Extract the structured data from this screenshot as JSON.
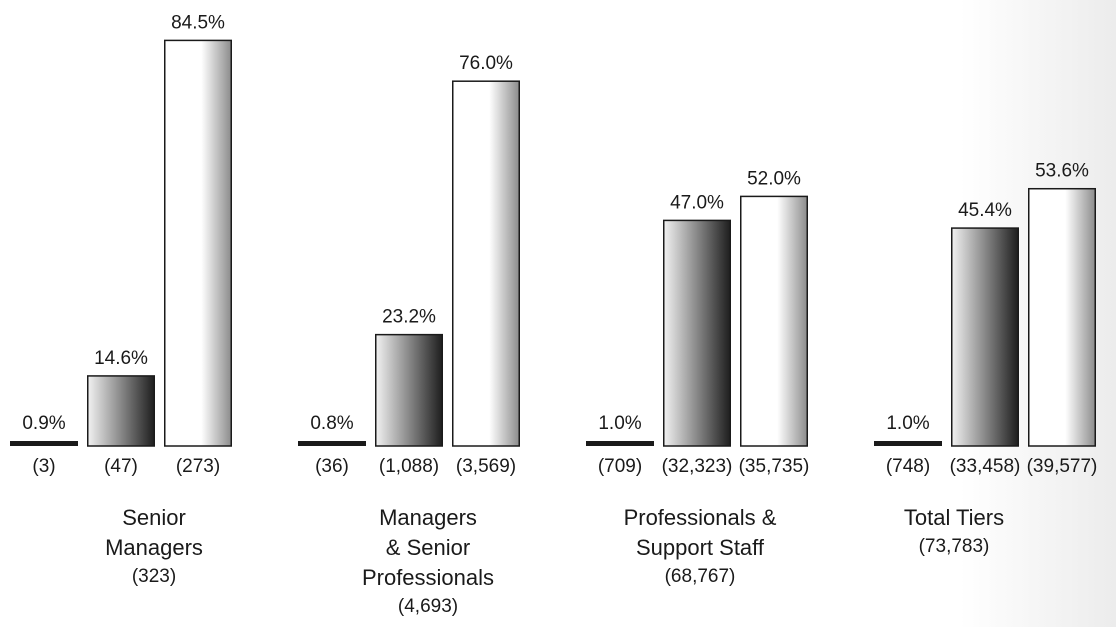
{
  "chart_data": {
    "type": "bar",
    "ylim": [
      0,
      100
    ],
    "groups": [
      {
        "label_lines": [
          "Senior",
          "Managers"
        ],
        "total": "(323)",
        "bars": [
          {
            "value": 0.9,
            "label": "0.9%",
            "count": "(3)"
          },
          {
            "value": 14.6,
            "label": "14.6%",
            "count": "(47)"
          },
          {
            "value": 84.5,
            "label": "84.5%",
            "count": "(273)"
          }
        ]
      },
      {
        "label_lines": [
          "Managers",
          "& Senior",
          "Professionals"
        ],
        "total": "(4,693)",
        "bars": [
          {
            "value": 0.8,
            "label": "0.8%",
            "count": "(36)"
          },
          {
            "value": 23.2,
            "label": "23.2%",
            "count": "(1,088)"
          },
          {
            "value": 76.0,
            "label": "76.0%",
            "count": "(3,569)"
          }
        ]
      },
      {
        "label_lines": [
          "Professionals &",
          "Support Staff"
        ],
        "total": "(68,767)",
        "bars": [
          {
            "value": 1.0,
            "label": "1.0%",
            "count": "(709)"
          },
          {
            "value": 47.0,
            "label": "47.0%",
            "count": "(32,323)"
          },
          {
            "value": 52.0,
            "label": "52.0%",
            "count": "(35,735)"
          }
        ]
      },
      {
        "label_lines": [
          "Total Tiers"
        ],
        "total": "(73,783)",
        "bars": [
          {
            "value": 1.0,
            "label": "1.0%",
            "count": "(748)"
          },
          {
            "value": 45.4,
            "label": "45.4%",
            "count": "(33,458)"
          },
          {
            "value": 53.6,
            "label": "53.6%",
            "count": "(39,577)"
          }
        ]
      }
    ],
    "series_styles": [
      "solid-dark",
      "gradient-light-to-dark",
      "gradient-white-to-gray"
    ],
    "colors": {
      "dark": "#1a1a1a",
      "gradient_light": "#f2f2f2",
      "gradient_dark": "#1e1e1e",
      "white": "#ffffff",
      "gray_edge": "#8c8c8c",
      "outline": "#1a1a1a"
    }
  }
}
